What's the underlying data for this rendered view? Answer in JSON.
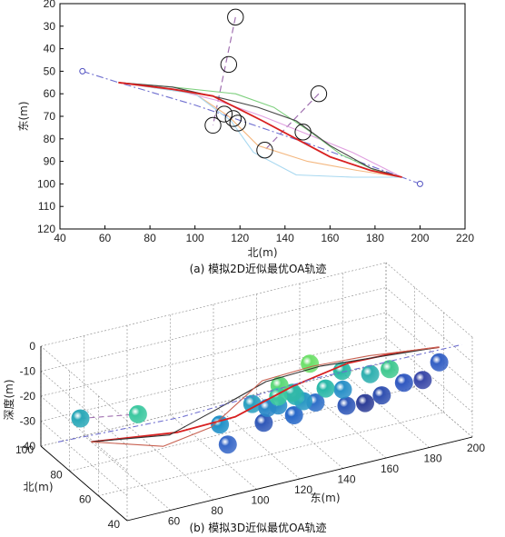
{
  "chart_data": [
    {
      "type": "line",
      "caption": "(a) 模拟2D近似最优OA轨迹",
      "xlabel": "北(m)",
      "ylabel": "东(m)",
      "xlim": [
        40,
        220
      ],
      "ylim": [
        20,
        120
      ],
      "y_inverted": true,
      "xticks": [
        "40",
        "60",
        "80",
        "100",
        "120",
        "140",
        "160",
        "180",
        "200",
        "220"
      ],
      "yticks": [
        "20",
        "30",
        "40",
        "50",
        "60",
        "70",
        "80",
        "90",
        "100",
        "110",
        "120"
      ],
      "start_marker": {
        "x": 50,
        "y": 50
      },
      "end_marker": {
        "x": 200,
        "y": 100
      },
      "series": [
        {
          "color": "#7070d0",
          "dash": "8,3,2,3",
          "points": [
            [
              50,
              50
            ],
            [
              66,
              55
            ],
            [
              100,
              65
            ],
            [
              150,
              82
            ],
            [
              192,
              97
            ],
            [
              200,
              100
            ]
          ]
        },
        {
          "color": "#e0a0e0",
          "dash": "",
          "points": [
            [
              66,
              55
            ],
            [
              90,
              58
            ],
            [
              110,
              63
            ],
            [
              130,
              70
            ],
            [
              150,
              78
            ],
            [
              170,
              86
            ],
            [
              192,
              97
            ]
          ]
        },
        {
          "color": "#7fd07f",
          "dash": "",
          "points": [
            [
              66,
              55
            ],
            [
              90,
              57
            ],
            [
              118,
              60
            ],
            [
              135,
              66
            ],
            [
              150,
              76
            ],
            [
              165,
              87
            ],
            [
              180,
              94
            ],
            [
              192,
              97
            ]
          ]
        },
        {
          "color": "#444444",
          "dash": "",
          "points": [
            [
              66,
              55
            ],
            [
              90,
              57
            ],
            [
              112,
              62
            ],
            [
              128,
              66
            ],
            [
              145,
              72
            ],
            [
              160,
              83
            ],
            [
              178,
              93
            ],
            [
              192,
              97
            ]
          ]
        },
        {
          "color": "#f4b880",
          "dash": "",
          "points": [
            [
              66,
              55
            ],
            [
              100,
              60
            ],
            [
              115,
              70
            ],
            [
              128,
              83
            ],
            [
              150,
              90
            ],
            [
              172,
              94
            ],
            [
              192,
              97
            ]
          ]
        },
        {
          "color": "#a8d8f0",
          "dash": "",
          "points": [
            [
              66,
              55
            ],
            [
              100,
              60
            ],
            [
              116,
              72
            ],
            [
              126,
              86
            ],
            [
              145,
              96
            ],
            [
              170,
              97
            ],
            [
              192,
              97
            ]
          ]
        },
        {
          "color": "#d82020",
          "dash": "",
          "points": [
            [
              66,
              55
            ],
            [
              90,
              58
            ],
            [
              108,
              61
            ],
            [
              118,
              66
            ],
            [
              130,
              72
            ],
            [
              145,
              80
            ],
            [
              160,
              88
            ],
            [
              178,
              94
            ],
            [
              192,
              97
            ]
          ]
        }
      ],
      "obstacles": [
        {
          "x": 118,
          "y": 26,
          "r": 3.5
        },
        {
          "x": 115,
          "y": 47,
          "r": 3.5
        },
        {
          "x": 155,
          "y": 60,
          "r": 3.5
        },
        {
          "x": 113,
          "y": 69,
          "r": 3.5
        },
        {
          "x": 117,
          "y": 71,
          "r": 3.5
        },
        {
          "x": 119,
          "y": 73,
          "r": 3.5
        },
        {
          "x": 108,
          "y": 74,
          "r": 3.5
        },
        {
          "x": 148,
          "y": 77,
          "r": 3.5
        },
        {
          "x": 131,
          "y": 85,
          "r": 3.5
        }
      ],
      "links": [
        [
          [
            118,
            26
          ],
          [
            108,
            74
          ]
        ],
        [
          [
            155,
            60
          ],
          [
            131,
            85
          ]
        ]
      ]
    },
    {
      "type": "scatter",
      "caption": "(b) 模拟3D近似最优OA轨迹",
      "xlabel": "东(m)",
      "ylabel": "北(m)",
      "zlabel": "深度(m)",
      "xlim": [
        40,
        200
      ],
      "ylim": [
        40,
        100
      ],
      "zlim": [
        -40,
        0
      ],
      "xticks": [
        "60",
        "80",
        "100",
        "120",
        "140",
        "160",
        "180",
        "200"
      ],
      "yticks": [
        "40",
        "60",
        "80",
        "100"
      ],
      "zticks": [
        "0",
        "-10",
        "-20",
        "-30",
        "-40"
      ],
      "spheres": [
        {
          "x": 45,
          "y": 80,
          "z": -20,
          "color": "#2aa8b8"
        },
        {
          "x": 55,
          "y": 55,
          "z": -8,
          "color": "#3cc8a0"
        },
        {
          "x": 100,
          "y": 60,
          "z": -32,
          "color": "#3868c8"
        },
        {
          "x": 95,
          "y": 58,
          "z": -22,
          "color": "#2090c8"
        },
        {
          "x": 110,
          "y": 40,
          "z": -5,
          "color": "#3cc8a0"
        },
        {
          "x": 120,
          "y": 45,
          "z": -8,
          "color": "#30b8a8"
        },
        {
          "x": 112,
          "y": 42,
          "z": -2,
          "color": "#5cd878"
        },
        {
          "x": 130,
          "y": 48,
          "z": 0,
          "color": "#6ee06a"
        },
        {
          "x": 108,
          "y": 55,
          "z": -15,
          "color": "#2aa0c0"
        },
        {
          "x": 115,
          "y": 55,
          "z": -18,
          "color": "#2a88c8"
        },
        {
          "x": 122,
          "y": 58,
          "z": -20,
          "color": "#2a8cc8"
        },
        {
          "x": 128,
          "y": 55,
          "z": -16,
          "color": "#2ab0b4"
        },
        {
          "x": 135,
          "y": 60,
          "z": -22,
          "color": "#2a98c4"
        },
        {
          "x": 142,
          "y": 62,
          "z": -25,
          "color": "#3070c8"
        },
        {
          "x": 140,
          "y": 52,
          "z": -14,
          "color": "#2ab8a8"
        },
        {
          "x": 150,
          "y": 55,
          "z": -18,
          "color": "#2a90c8"
        },
        {
          "x": 155,
          "y": 60,
          "z": -28,
          "color": "#3058b8"
        },
        {
          "x": 165,
          "y": 62,
          "z": -30,
          "color": "#2f3f98"
        },
        {
          "x": 170,
          "y": 58,
          "z": -26,
          "color": "#3050b0"
        },
        {
          "x": 158,
          "y": 48,
          "z": -10,
          "color": "#30b0b0"
        },
        {
          "x": 165,
          "y": 45,
          "z": -8,
          "color": "#40c890"
        },
        {
          "x": 175,
          "y": 50,
          "z": -18,
          "color": "#3058c0"
        },
        {
          "x": 185,
          "y": 52,
          "z": -20,
          "color": "#3a48a8"
        },
        {
          "x": 190,
          "y": 48,
          "z": -12,
          "color": "#3460c4"
        },
        {
          "x": 145,
          "y": 48,
          "z": -6,
          "color": "#2ab8a4"
        },
        {
          "x": 132,
          "y": 62,
          "z": -28,
          "color": "#2868c8"
        },
        {
          "x": 120,
          "y": 65,
          "z": -30,
          "color": "#3058b8"
        }
      ],
      "series": [
        {
          "color": "#d82020",
          "points": [
            [
              60,
              95,
              -40
            ],
            [
              90,
              80,
              -35
            ],
            [
              110,
              70,
              -28
            ],
            [
              130,
              60,
              -15
            ],
            [
              150,
              52,
              -6
            ],
            [
              170,
              48,
              -4
            ],
            [
              188,
              45,
              -4
            ]
          ]
        },
        {
          "color": "#333333",
          "points": [
            [
              60,
              95,
              -40
            ],
            [
              85,
              78,
              -34
            ],
            [
              100,
              68,
              -22
            ],
            [
              115,
              56,
              -8
            ],
            [
              135,
              48,
              -2
            ],
            [
              160,
              45,
              -2
            ],
            [
              188,
              45,
              -4
            ]
          ]
        },
        {
          "color": "#c86050",
          "points": [
            [
              60,
              95,
              -40
            ],
            [
              80,
              75,
              -36
            ],
            [
              95,
              64,
              -26
            ],
            [
              112,
              54,
              -6
            ],
            [
              130,
              46,
              0
            ],
            [
              155,
              44,
              0
            ],
            [
              188,
              45,
              -4
            ]
          ]
        },
        {
          "color": "#7070d0",
          "dash": "6,3,2,3",
          "points": [
            [
              48,
              100,
              -40
            ],
            [
              90,
              78,
              -28
            ],
            [
              140,
              60,
              -14
            ],
            [
              195,
              40,
              -2
            ]
          ]
        }
      ],
      "links": [
        [
          [
            45,
            80,
            -20
          ],
          [
            55,
            55,
            -8
          ]
        ],
        [
          [
            110,
            40,
            -5
          ],
          [
            120,
            65,
            -30
          ]
        ]
      ]
    }
  ]
}
